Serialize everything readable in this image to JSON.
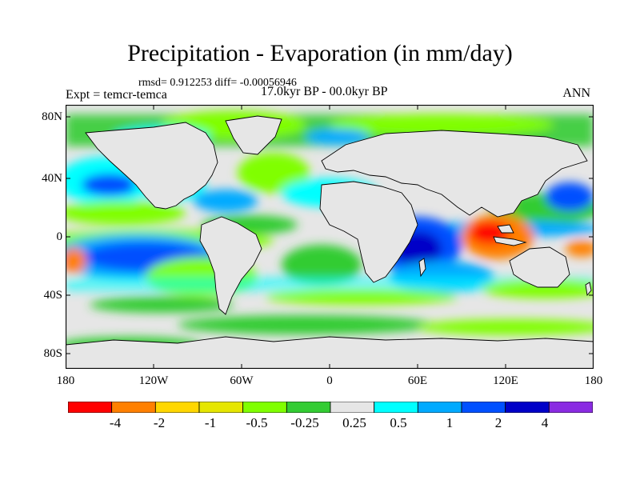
{
  "title": "Precipitation - Evaporation (in mm/day)",
  "stats": "rmsd= 0.912253 diff= -0.00056946",
  "experiment": "Expt = temcr-temca",
  "period": "17.0kyr BP - 00.0kyr BP",
  "season": "ANN",
  "lat_ticks": [
    "80N",
    "40N",
    "0",
    "40S",
    "80S"
  ],
  "lon_ticks": [
    "180",
    "120W",
    "60W",
    "0",
    "60E",
    "120E",
    "180"
  ],
  "colorbar": {
    "labels": [
      "-4",
      "-2",
      "-1",
      "-0.5",
      "-0.25",
      "0.25",
      "0.5",
      "1",
      "2",
      "4"
    ],
    "colors": [
      "#ff0000",
      "#ff8000",
      "#ffd700",
      "#e6e600",
      "#80ff00",
      "#33cc33",
      "#e6e6e6",
      "#00ffff",
      "#00aaff",
      "#0050ff",
      "#0000c8",
      "#8a2be2"
    ]
  }
}
